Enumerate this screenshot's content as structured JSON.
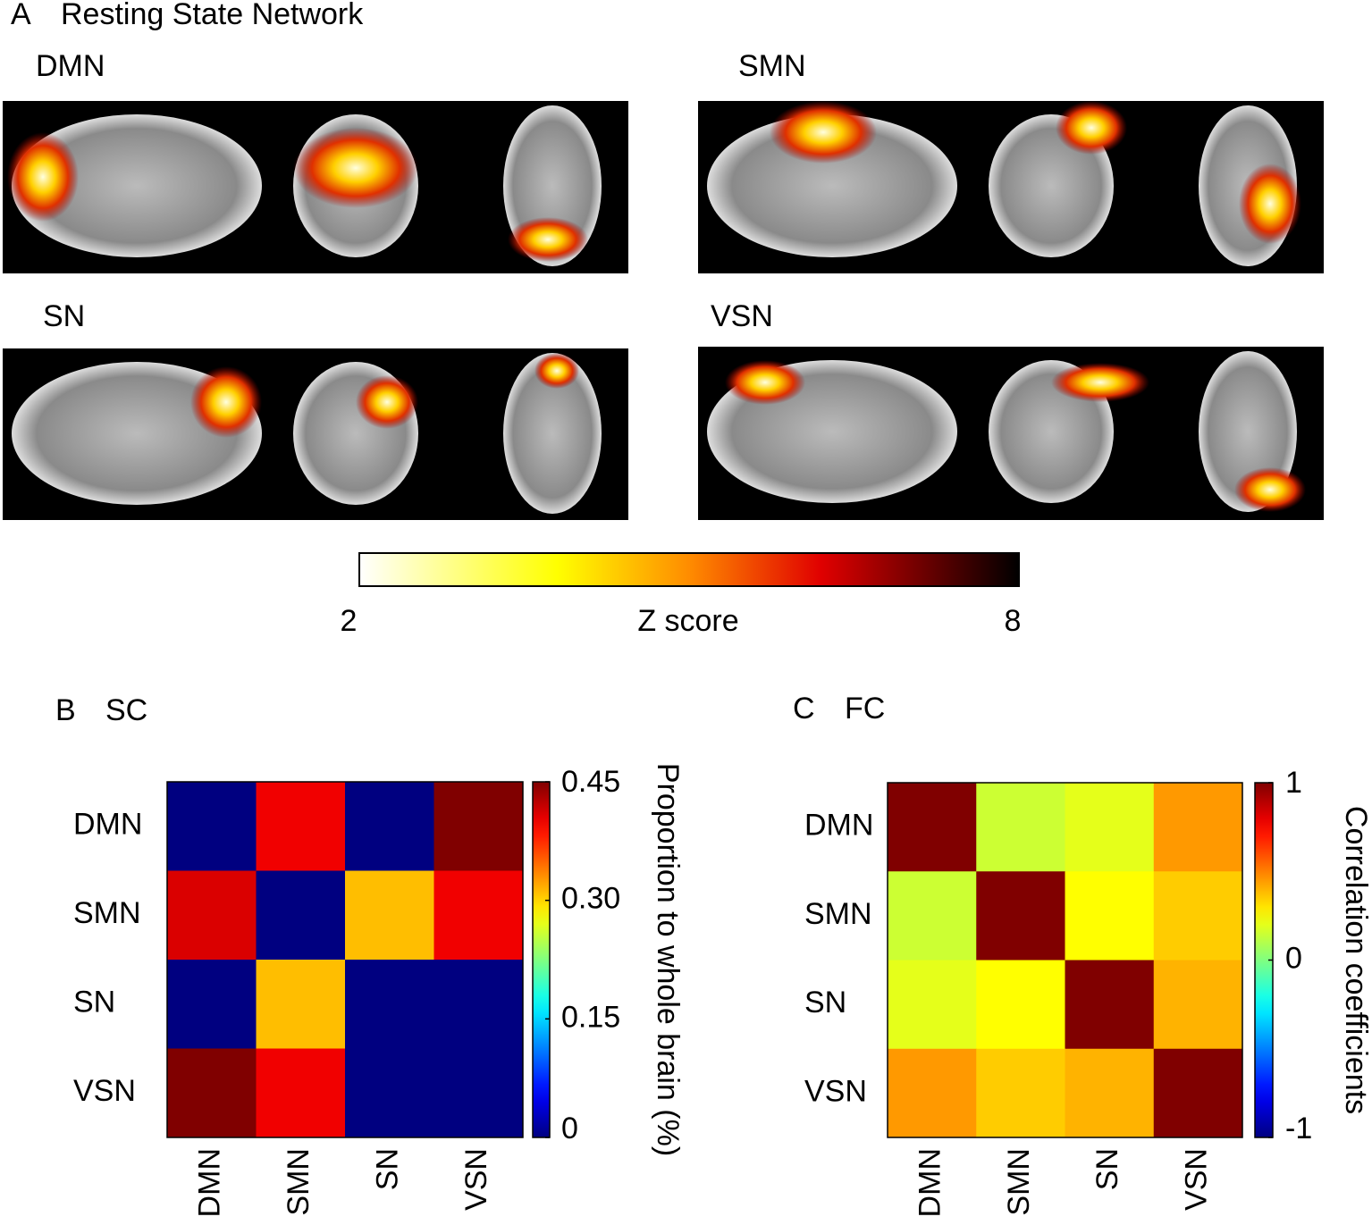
{
  "panel_a": {
    "label": "A",
    "title": "Resting State Network",
    "networks": [
      "DMN",
      "SMN",
      "SN",
      "VSN"
    ],
    "colorbar": {
      "min": 2,
      "max": 8,
      "label": "Z score"
    }
  },
  "chart_data": [
    {
      "type": "heatmap",
      "panel": "B",
      "title": "SC",
      "x_categories": [
        "DMN",
        "SMN",
        "SN",
        "VSN"
      ],
      "y_categories": [
        "DMN",
        "SMN",
        "SN",
        "VSN"
      ],
      "values": [
        [
          0,
          0.4,
          0,
          0.45
        ],
        [
          0.41,
          0,
          0.31,
          0.4
        ],
        [
          0,
          0.31,
          0,
          0
        ],
        [
          0.45,
          0.4,
          0,
          0
        ]
      ],
      "colormap": "jet",
      "zlim": [
        0,
        0.45
      ],
      "zticks": [
        0,
        0.15,
        {
          "value": 0.3,
          "label": "0.30"
        },
        0.45
      ],
      "zlabel": "Proportion to whole brain (%)"
    },
    {
      "type": "heatmap",
      "panel": "C",
      "title": "FC",
      "x_categories": [
        "DMN",
        "SMN",
        "SN",
        "VSN"
      ],
      "y_categories": [
        "DMN",
        "SMN",
        "SN",
        "VSN"
      ],
      "values": [
        [
          1,
          0.15,
          0.2,
          0.45
        ],
        [
          0.15,
          1,
          0.25,
          0.35
        ],
        [
          0.2,
          0.25,
          1,
          0.4
        ],
        [
          0.45,
          0.35,
          0.4,
          1
        ]
      ],
      "colormap": "jet",
      "zlim": [
        -1,
        1
      ],
      "zticks": [
        -1,
        0,
        1
      ],
      "zlabel": "Correlation coefficients"
    }
  ]
}
